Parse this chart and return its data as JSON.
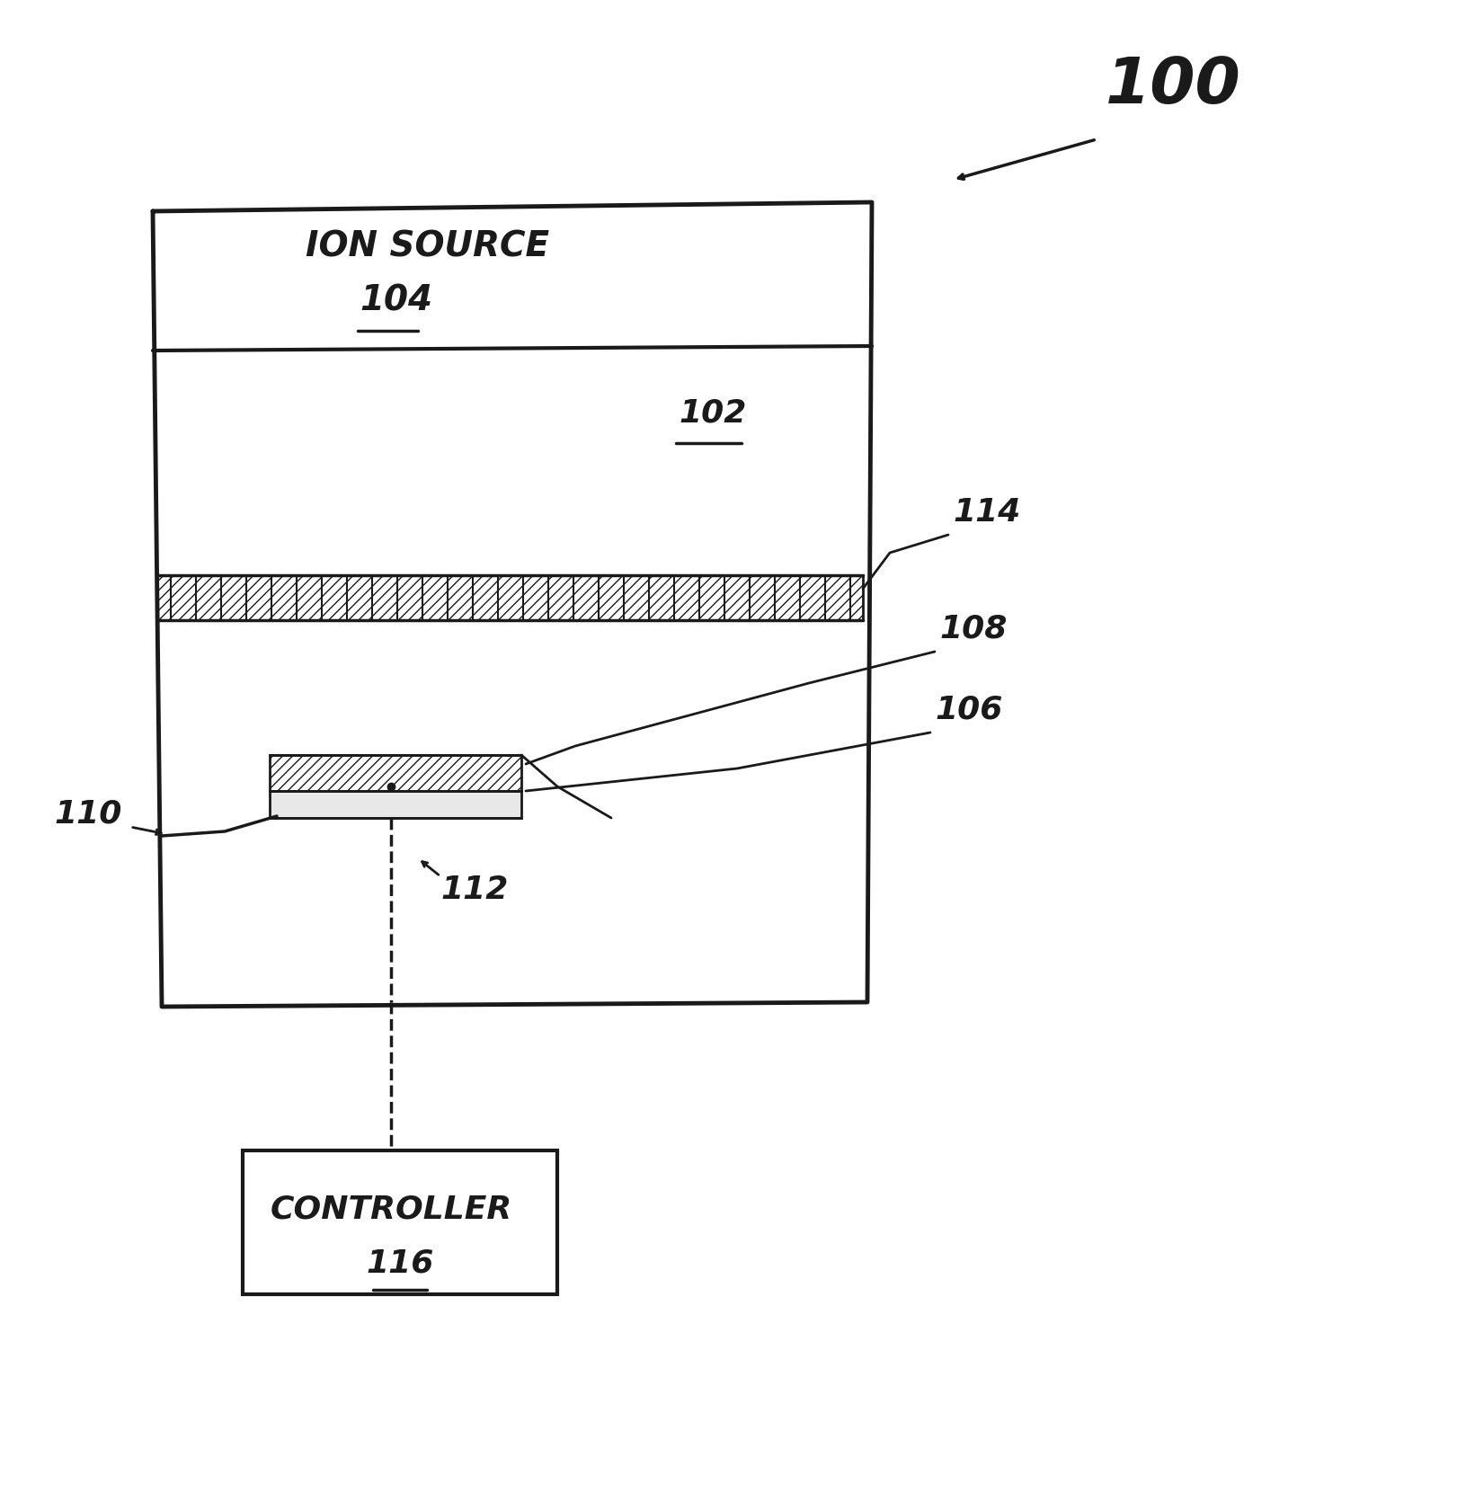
{
  "bg_color": "#ffffff",
  "line_color": "#1a1a1a",
  "figsize": [
    16.21,
    16.7
  ],
  "dpi": 100,
  "label_100": "100",
  "label_104": "104",
  "label_102": "102",
  "label_114": "114",
  "label_108": "108",
  "label_106": "106",
  "label_110": "110",
  "label_112": "112",
  "label_116": "116",
  "ion_source_text": "ION SOURCE",
  "controller_text": "CONTROLLER"
}
